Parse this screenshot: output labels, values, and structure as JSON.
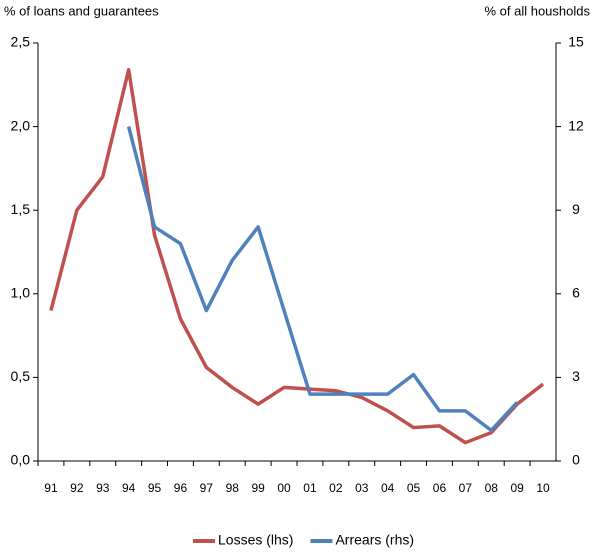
{
  "chart_data": {
    "type": "line",
    "y_label": "% of loans and guarantees",
    "y2_label": "% of all housholds",
    "categories": [
      "91",
      "92",
      "93",
      "94",
      "95",
      "96",
      "97",
      "98",
      "99",
      "00",
      "01",
      "02",
      "03",
      "04",
      "05",
      "06",
      "07",
      "08",
      "09",
      "10"
    ],
    "series": [
      {
        "name": "Losses (lhs)",
        "color": "#c0504d",
        "values": [
          0.9,
          1.5,
          1.7,
          2.34,
          1.35,
          0.85,
          0.56,
          0.44,
          0.34,
          0.44,
          0.43,
          0.42,
          0.38,
          0.3,
          0.2,
          0.21,
          0.11,
          0.17,
          0.34,
          0.46
        ]
      },
      {
        "name": "Arrears (rhs)",
        "color": "#4f81bd",
        "axis": "y2",
        "values": [
          null,
          null,
          null,
          12.0,
          8.4,
          7.8,
          5.4,
          7.2,
          8.4,
          5.4,
          2.4,
          2.4,
          2.4,
          2.4,
          3.1,
          1.8,
          1.8,
          1.1,
          2.1,
          null
        ]
      }
    ],
    "ylim": [
      0,
      2.5
    ],
    "yticks": [
      {
        "value": 0,
        "label": "0,0"
      },
      {
        "value": 0.5,
        "label": "0,5"
      },
      {
        "value": 1,
        "label": "1,0"
      },
      {
        "value": 1.5,
        "label": "1,5"
      },
      {
        "value": 2,
        "label": "2,0"
      },
      {
        "value": 2.5,
        "label": "2,5"
      }
    ],
    "y2lim": [
      0,
      15
    ],
    "y2ticks": [
      0,
      3,
      6,
      9,
      12,
      15
    ],
    "grid": false,
    "legend": "bottom"
  }
}
